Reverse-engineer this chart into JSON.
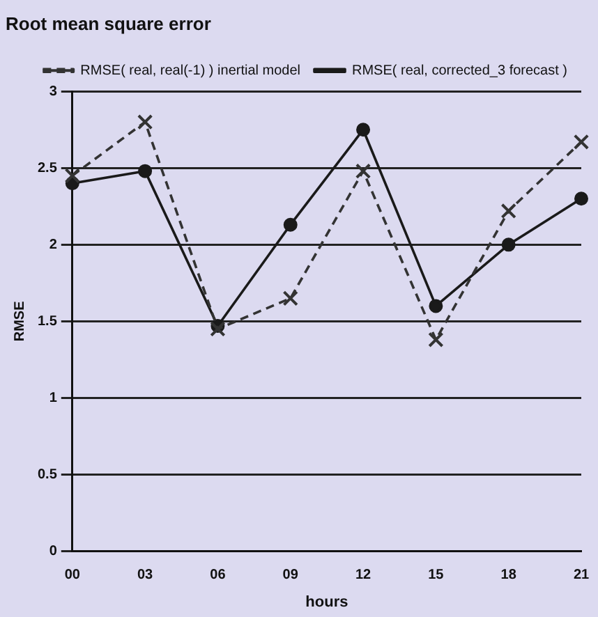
{
  "chart_data": {
    "type": "line",
    "title": "Root mean square error",
    "xlabel": "hours",
    "ylabel": "RMSE",
    "categories": [
      "00",
      "03",
      "06",
      "09",
      "12",
      "15",
      "18",
      "21"
    ],
    "series": [
      {
        "name": "RMSE( real, corrected_3 forecast )",
        "color": "#1a1a1a",
        "marker": "circle",
        "line_style": "solid",
        "values": [
          2.4,
          2.48,
          1.47,
          2.13,
          2.75,
          1.6,
          2.0,
          2.3
        ]
      },
      {
        "name": "RMSE( real, real(-1) ) inertial model",
        "color": "#333333",
        "marker": "cross",
        "line_style": "dashed",
        "values": [
          2.45,
          2.8,
          1.45,
          1.65,
          2.48,
          1.38,
          2.22,
          2.67
        ]
      }
    ],
    "ylim": [
      0,
      3
    ],
    "yticks": [
      0,
      0.5,
      1,
      1.5,
      2,
      2.5,
      3
    ],
    "grid": "y",
    "legend": "top right"
  }
}
